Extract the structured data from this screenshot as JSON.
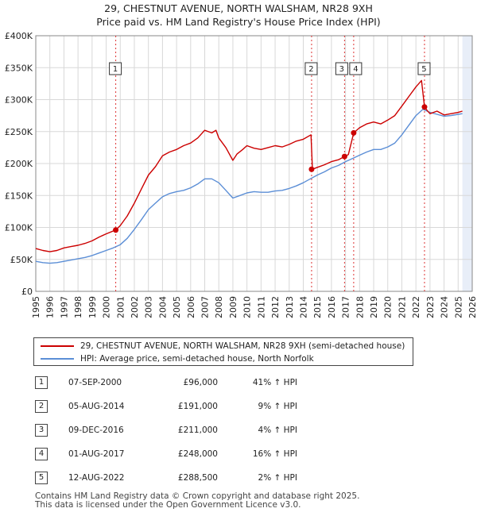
{
  "title_line1": "29, CHESTNUT AVENUE, NORTH WALSHAM, NR28 9XH",
  "title_line2": "Price paid vs. HM Land Registry's House Price Index (HPI)",
  "chart_data": {
    "type": "line",
    "y_ticks": [
      0,
      50000,
      100000,
      150000,
      200000,
      250000,
      300000,
      350000,
      400000
    ],
    "y_tick_labels": [
      "£0",
      "£50K",
      "£100K",
      "£150K",
      "£200K",
      "£250K",
      "£300K",
      "£350K",
      "£400K"
    ],
    "ylim": [
      0,
      400000
    ],
    "xlim": [
      1995,
      2026
    ],
    "x_ticks": [
      1995,
      1996,
      1997,
      1998,
      1999,
      2000,
      2001,
      2002,
      2003,
      2004,
      2005,
      2006,
      2007,
      2008,
      2009,
      2010,
      2011,
      2012,
      2013,
      2014,
      2015,
      2016,
      2017,
      2018,
      2019,
      2020,
      2021,
      2022,
      2023,
      2024,
      2025,
      2026
    ],
    "x_tick_labels": [
      "1995",
      "1996",
      "1997",
      "1998",
      "1999",
      "2000",
      "2001",
      "2002",
      "2003",
      "2004",
      "2005",
      "2006",
      "2007",
      "2008",
      "2009",
      "2010",
      "2011",
      "2012",
      "2013",
      "2014",
      "2015",
      "2016",
      "2017",
      "2018",
      "2019",
      "2020",
      "2021",
      "2022",
      "2023",
      "2024",
      "2025",
      "2026"
    ],
    "colors": {
      "property": "#cc0000",
      "hpi": "#5b8ed6",
      "event_line": "#dd3333",
      "shade": "#e8eef8"
    },
    "series": [
      {
        "name": "29, CHESTNUT AVENUE, NORTH WALSHAM, NR28 9XH (semi-detached house)",
        "x": [
          1995.0,
          1995.5,
          1996.0,
          1996.5,
          1997.0,
          1997.5,
          1998.0,
          1998.5,
          1999.0,
          1999.5,
          2000.0,
          2000.68,
          2001.0,
          2001.5,
          2002.0,
          2002.5,
          2003.0,
          2003.5,
          2004.0,
          2004.5,
          2005.0,
          2005.5,
          2006.0,
          2006.5,
          2007.0,
          2007.5,
          2007.8,
          2008.0,
          2008.5,
          2009.0,
          2009.3,
          2009.7,
          2010.0,
          2010.5,
          2011.0,
          2011.5,
          2012.0,
          2012.5,
          2013.0,
          2013.5,
          2014.0,
          2014.55,
          2014.65,
          2015.0,
          2015.5,
          2016.0,
          2016.5,
          2016.93,
          2017.2,
          2017.58,
          2018.0,
          2018.5,
          2019.0,
          2019.5,
          2020.0,
          2020.5,
          2021.0,
          2021.5,
          2022.0,
          2022.4,
          2022.61,
          2022.8,
          2023.0,
          2023.5,
          2024.0,
          2024.5,
          2025.0,
          2025.3
        ],
        "values": [
          67000,
          64000,
          62000,
          64000,
          68000,
          70000,
          72000,
          75000,
          79000,
          85000,
          90000,
          96000,
          103000,
          118000,
          138000,
          160000,
          182000,
          195000,
          212000,
          218000,
          222000,
          228000,
          232000,
          240000,
          252000,
          248000,
          252000,
          240000,
          225000,
          205000,
          215000,
          222000,
          228000,
          224000,
          222000,
          225000,
          228000,
          226000,
          230000,
          235000,
          238000,
          245000,
          191000,
          194000,
          198000,
          203000,
          206000,
          211000,
          214000,
          248000,
          256000,
          262000,
          265000,
          262000,
          268000,
          275000,
          290000,
          305000,
          320000,
          330000,
          288500,
          283000,
          278000,
          282000,
          276000,
          278000,
          280000,
          282000
        ]
      },
      {
        "name": "HPI: Average price, semi-detached house, North Norfolk",
        "x": [
          1995.0,
          1995.5,
          1996.0,
          1996.5,
          1997.0,
          1997.5,
          1998.0,
          1998.5,
          1999.0,
          1999.5,
          2000.0,
          2000.5,
          2001.0,
          2001.5,
          2002.0,
          2002.5,
          2003.0,
          2003.5,
          2004.0,
          2004.5,
          2005.0,
          2005.5,
          2006.0,
          2006.5,
          2007.0,
          2007.5,
          2008.0,
          2008.5,
          2009.0,
          2009.5,
          2010.0,
          2010.5,
          2011.0,
          2011.5,
          2012.0,
          2012.5,
          2013.0,
          2013.5,
          2014.0,
          2014.5,
          2015.0,
          2015.5,
          2016.0,
          2016.5,
          2017.0,
          2017.5,
          2018.0,
          2018.5,
          2019.0,
          2019.5,
          2020.0,
          2020.5,
          2021.0,
          2021.5,
          2022.0,
          2022.5,
          2023.0,
          2023.5,
          2024.0,
          2024.5,
          2025.0,
          2025.3
        ],
        "values": [
          47000,
          45000,
          44000,
          45000,
          47000,
          49000,
          51000,
          53000,
          56000,
          60000,
          64000,
          68000,
          73000,
          83000,
          97000,
          112000,
          128000,
          138000,
          148000,
          153000,
          156000,
          158000,
          162000,
          168000,
          176000,
          176000,
          170000,
          158000,
          146000,
          150000,
          154000,
          156000,
          155000,
          155000,
          157000,
          158000,
          161000,
          165000,
          170000,
          176000,
          182000,
          187000,
          193000,
          197000,
          203000,
          208000,
          213000,
          218000,
          222000,
          222000,
          226000,
          232000,
          245000,
          260000,
          275000,
          285000,
          280000,
          277000,
          274000,
          275000,
          277000,
          278000
        ]
      }
    ],
    "sale_markers": [
      {
        "label": "1",
        "x": 2000.68,
        "y": 96000
      },
      {
        "label": "2",
        "x": 2014.59,
        "y": 191000
      },
      {
        "label": "3",
        "x": 2016.93,
        "y": 211000
      },
      {
        "label": "4",
        "x": 2017.58,
        "y": 248000
      },
      {
        "label": "5",
        "x": 2022.61,
        "y": 288500
      }
    ],
    "shaded_future_from": 2025.3
  },
  "legend": {
    "property_label": "29, CHESTNUT AVENUE, NORTH WALSHAM, NR28 9XH (semi-detached house)",
    "hpi_label": "HPI: Average price, semi-detached house, North Norfolk"
  },
  "sales": [
    {
      "num": "1",
      "date": "07-SEP-2000",
      "price": "£96,000",
      "hpi": "41% ↑ HPI"
    },
    {
      "num": "2",
      "date": "05-AUG-2014",
      "price": "£191,000",
      "hpi": "9% ↑ HPI"
    },
    {
      "num": "3",
      "date": "09-DEC-2016",
      "price": "£211,000",
      "hpi": "4% ↑ HPI"
    },
    {
      "num": "4",
      "date": "01-AUG-2017",
      "price": "£248,000",
      "hpi": "16% ↑ HPI"
    },
    {
      "num": "5",
      "date": "12-AUG-2022",
      "price": "£288,500",
      "hpi": "2% ↑ HPI"
    }
  ],
  "footer_line1": "Contains HM Land Registry data © Crown copyright and database right 2025.",
  "footer_line2": "This data is licensed under the Open Government Licence v3.0."
}
